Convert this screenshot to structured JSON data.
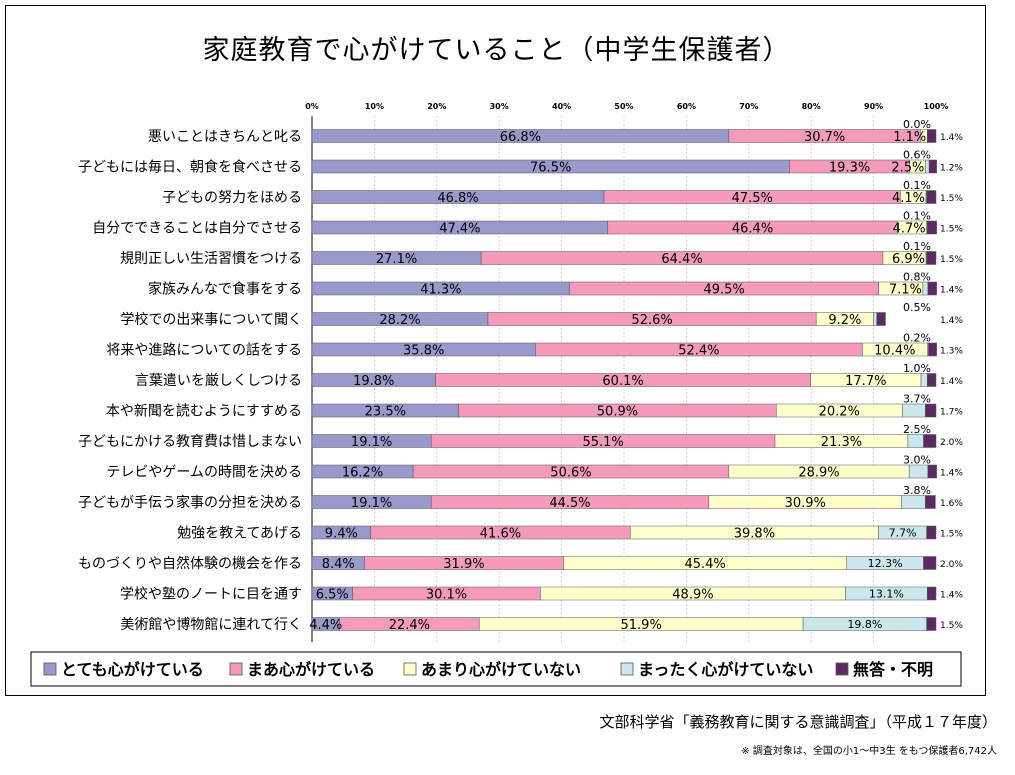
{
  "chart_data": {
    "type": "bar",
    "orientation": "horizontal",
    "stacked": true,
    "title": "家庭教育で心がけていること（中学生保護者）",
    "x_ticks": [
      "0%",
      "10%",
      "20%",
      "30%",
      "40%",
      "50%",
      "60%",
      "70%",
      "80%",
      "90%",
      "100%"
    ],
    "xlim": [
      0,
      100
    ],
    "grid": true,
    "legend_position": "bottom",
    "categories": [
      "悪いことはきちんと叱る",
      "子どもには毎日、朝食を食べさせる",
      "子どもの努力をほめる",
      "自分でできることは自分でさせる",
      "規則正しい生活習慣をつける",
      "家族みんなで食事をする",
      "学校での出来事について聞く",
      "将来や進路についての話をする",
      "言葉遣いを厳しくしつける",
      "本や新聞を読むようにすすめる",
      "子どもにかける教育費は惜しまない",
      "テレビやゲームの時間を決める",
      "子どもが手伝う家事の分担を決める",
      "勉強を教えてあげる",
      "ものづくりや自然体験の機会を作る",
      "学校や塾のノートに目を通す",
      "美術館や博物館に連れて行く"
    ],
    "series": [
      {
        "name": "とても心がけている",
        "color": "#9999cc",
        "values": [
          66.8,
          76.5,
          46.8,
          47.4,
          27.1,
          41.3,
          28.2,
          35.8,
          19.8,
          23.5,
          19.1,
          16.2,
          19.1,
          9.4,
          8.4,
          6.5,
          4.4
        ]
      },
      {
        "name": "まあ心がけている",
        "color": "#f39abd",
        "values": [
          30.7,
          19.3,
          47.5,
          46.4,
          64.4,
          49.5,
          52.6,
          52.4,
          60.1,
          50.9,
          55.1,
          50.6,
          44.5,
          41.6,
          31.9,
          30.1,
          22.4
        ]
      },
      {
        "name": "あまり心がけていない",
        "color": "#ffffcc",
        "values": [
          1.1,
          2.5,
          4.1,
          4.7,
          6.9,
          7.1,
          9.2,
          10.4,
          17.7,
          20.2,
          21.3,
          28.9,
          30.9,
          39.8,
          45.4,
          48.9,
          51.9
        ]
      },
      {
        "name": "まったく心がけていない",
        "color": "#cce6ee",
        "values": [
          0.0,
          0.6,
          0.1,
          0.1,
          0.1,
          0.8,
          0.5,
          0.2,
          1.0,
          3.7,
          2.5,
          3.0,
          3.8,
          7.7,
          12.3,
          13.1,
          19.8
        ]
      },
      {
        "name": "無答・不明",
        "color": "#5c2a63",
        "values": [
          1.4,
          1.2,
          1.5,
          1.5,
          1.5,
          1.4,
          1.4,
          1.3,
          1.4,
          1.7,
          2.0,
          1.4,
          1.6,
          1.5,
          2.0,
          1.4,
          1.5
        ]
      }
    ],
    "value_labels": [
      [
        "66.8%",
        "30.7%",
        "1.1%",
        "0.0%",
        "1.4%"
      ],
      [
        "76.5%",
        "19.3%",
        "2.5%",
        "0.6%",
        "1.2%"
      ],
      [
        "46.8%",
        "47.5%",
        "4.1%",
        "0.1%",
        "1.5%"
      ],
      [
        "47.4%",
        "46.4%",
        "4.7%",
        "0.1%",
        "1.5%"
      ],
      [
        "27.1%",
        "64.4%",
        "6.9%",
        "0.1%",
        "1.5%"
      ],
      [
        "41.3%",
        "49.5%",
        "7.1%",
        "0.8%",
        "1.4%"
      ],
      [
        "28.2%",
        "52.6%",
        "9.2%",
        "0.5%",
        "1.4%"
      ],
      [
        "35.8%",
        "52.4%",
        "10.4%",
        "0.2%",
        "1.3%"
      ],
      [
        "19.8%",
        "60.1%",
        "17.7%",
        "1.0%",
        "1.4%"
      ],
      [
        "23.5%",
        "50.9%",
        "20.2%",
        "3.7%",
        "1.7%"
      ],
      [
        "19.1%",
        "55.1%",
        "21.3%",
        "2.5%",
        "2.0%"
      ],
      [
        "16.2%",
        "50.6%",
        "28.9%",
        "3.0%",
        "1.4%"
      ],
      [
        "19.1%",
        "44.5%",
        "30.9%",
        "3.8%",
        "1.6%"
      ],
      [
        "9.4%",
        "41.6%",
        "39.8%",
        "7.7%",
        "1.5%"
      ],
      [
        "8.4%",
        "31.9%",
        "45.4%",
        "12.3%",
        "2.0%"
      ],
      [
        "6.5%",
        "30.1%",
        "48.9%",
        "13.1%",
        "1.4%"
      ],
      [
        "4.4%",
        "22.4%",
        "51.9%",
        "19.8%",
        "1.5%"
      ]
    ]
  },
  "source": "文部科学省「義務教育に関する意識調査」（平成１７年度）",
  "note": "※ 調査対象は、全国の小1～中3生 をもつ保護者6,742人"
}
